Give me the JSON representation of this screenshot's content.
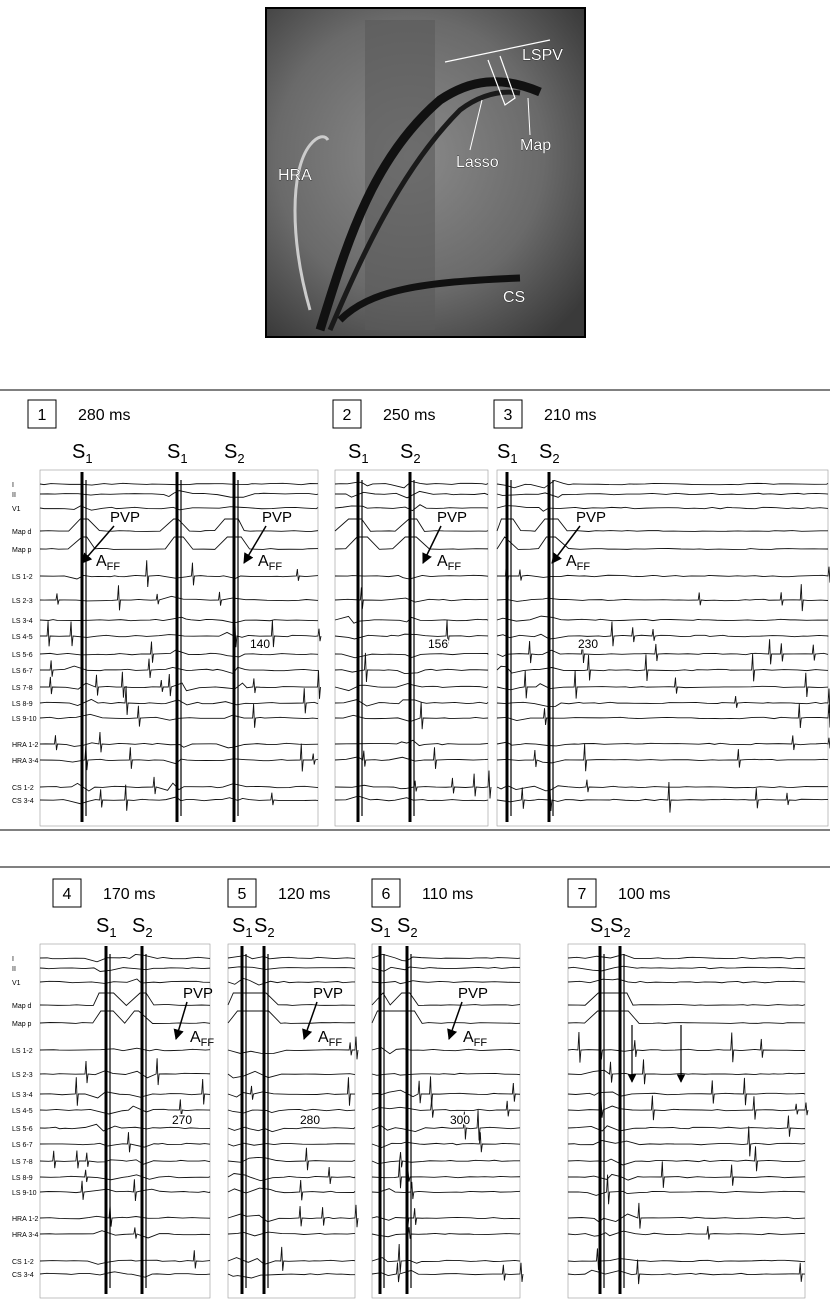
{
  "fluoroscopy": {
    "labels": {
      "lspv": "LSPV",
      "hra": "HRA",
      "lasso": "Lasso",
      "map": "Map",
      "cs": "CS"
    }
  },
  "rows": [
    {
      "channels": [
        "I",
        "II",
        "V1",
        "Map d",
        "Map p",
        "LS 1-2",
        "LS 2-3",
        "LS 3-4",
        "LS 4-5",
        "LS 5-6",
        "LS 6-7",
        "LS 7-8",
        "LS 8-9",
        "LS 9-10",
        "HRA 1-2",
        "HRA 3-4",
        "CS 1-2",
        "CS 3-4"
      ],
      "panels": [
        {
          "number": 1,
          "interval": "280 ms",
          "stimuli": [
            {
              "letter": "S",
              "index": "1"
            },
            {
              "letter": "S",
              "index": "1"
            },
            {
              "letter": "S",
              "index": "2"
            }
          ],
          "pvp": [
            "PVP",
            "PVP"
          ],
          "aff": [
            {
              "letter": "A",
              "sub": "FF"
            },
            {
              "letter": "A",
              "sub": "FF"
            }
          ],
          "measurement": 140
        },
        {
          "number": 2,
          "interval": "250 ms",
          "stimuli": [
            {
              "letter": "S",
              "index": "1"
            },
            {
              "letter": "S",
              "index": "2"
            }
          ],
          "pvp": [
            "PVP"
          ],
          "aff": [
            {
              "letter": "A",
              "sub": "FF"
            }
          ],
          "measurement": 156
        },
        {
          "number": 3,
          "interval": "210 ms",
          "stimuli": [
            {
              "letter": "S",
              "index": "1"
            },
            {
              "letter": "S",
              "index": "2"
            }
          ],
          "pvp": [
            "PVP"
          ],
          "aff": [
            {
              "letter": "A",
              "sub": "FF"
            }
          ],
          "measurement": 230
        }
      ]
    },
    {
      "channels": [
        "I",
        "II",
        "V1",
        "Map d",
        "Map p",
        "LS 1-2",
        "LS 2-3",
        "LS 3-4",
        "LS 4-5",
        "LS 5-6",
        "LS 6-7",
        "LS 7-8",
        "LS 8-9",
        "LS 9-10",
        "HRA 1-2",
        "HRA 3-4",
        "CS 1-2",
        "CS 3-4"
      ],
      "panels": [
        {
          "number": 4,
          "interval": "170 ms",
          "stimuli": [
            {
              "letter": "S",
              "index": "1"
            },
            {
              "letter": "S",
              "index": "2"
            }
          ],
          "pvp": [
            "PVP"
          ],
          "aff": [
            {
              "letter": "A",
              "sub": "FF"
            }
          ],
          "measurement": 270
        },
        {
          "number": 5,
          "interval": "120 ms",
          "stimuli": [
            {
              "letter": "S",
              "index": "1"
            },
            {
              "letter": "S",
              "index": "2"
            }
          ],
          "pvp": [
            "PVP"
          ],
          "aff": [
            {
              "letter": "A",
              "sub": "FF"
            }
          ],
          "measurement": 280
        },
        {
          "number": 6,
          "interval": "110 ms",
          "stimuli": [
            {
              "letter": "S",
              "index": "1"
            },
            {
              "letter": "S",
              "index": "2"
            }
          ],
          "pvp": [
            "PVP"
          ],
          "aff": [
            {
              "letter": "A",
              "sub": "FF"
            }
          ],
          "measurement": 300
        },
        {
          "number": 7,
          "interval": "100 ms",
          "stimuli": [
            {
              "letter": "S",
              "index": "1"
            },
            {
              "letter": "S",
              "index": "2"
            }
          ]
        }
      ]
    }
  ]
}
